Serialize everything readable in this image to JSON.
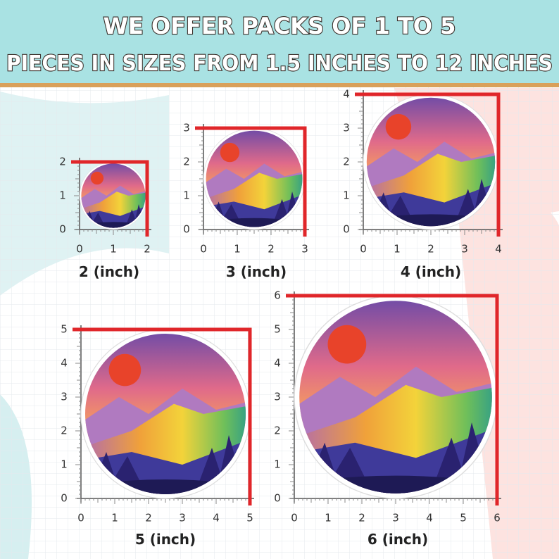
{
  "header": {
    "lines": [
      "WE OFFER PACKS OF 1 TO 5",
      "PIECES IN SIZES FROM 1.5 INCHES TO 12 INCHES"
    ]
  },
  "panels": [
    {
      "label": "2 (inch)",
      "ticks": [
        0,
        1,
        2
      ]
    },
    {
      "label": "3 (inch)",
      "ticks": [
        0,
        1,
        2,
        3
      ]
    },
    {
      "label": "4 (inch)",
      "ticks": [
        0,
        1,
        2,
        3,
        4
      ]
    },
    {
      "label": "5 (inch)",
      "ticks": [
        0,
        1,
        2,
        3,
        4,
        5
      ]
    },
    {
      "label": "6 (inch)",
      "ticks": [
        0,
        1,
        2,
        3,
        4,
        5,
        6
      ]
    }
  ]
}
